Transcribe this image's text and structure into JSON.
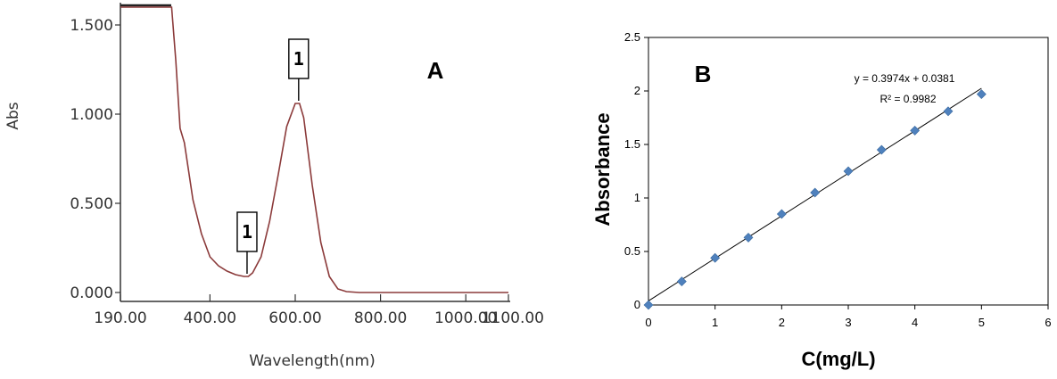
{
  "chart_data": [
    {
      "type": "line",
      "panel_label": "A",
      "xlabel": "Wavelength(nm)",
      "ylabel": "Abs",
      "xlim": [
        190,
        1100
      ],
      "ylim": [
        0,
        1.6
      ],
      "x_ticks": [
        "190.00",
        "400.00",
        "600.00",
        "800.00",
        "1000.00",
        "1100.00"
      ],
      "y_ticks": [
        "0.000",
        "0.500",
        "1.000",
        "1.500"
      ],
      "line_color": "#8b3a3a",
      "series": [
        {
          "x": [
            190,
            200,
            250,
            300,
            310,
            320,
            330,
            340,
            350,
            360,
            380,
            400,
            420,
            440,
            460,
            480,
            490,
            500,
            520,
            540,
            560,
            580,
            600,
            610,
            620,
            640,
            660,
            680,
            700,
            720,
            750,
            800,
            900,
            1000,
            1100
          ],
          "y": [
            1.6,
            1.6,
            1.6,
            1.6,
            1.6,
            1.3,
            0.92,
            0.84,
            0.68,
            0.52,
            0.33,
            0.2,
            0.15,
            0.12,
            0.1,
            0.09,
            0.09,
            0.11,
            0.2,
            0.4,
            0.66,
            0.93,
            1.06,
            1.06,
            0.98,
            0.6,
            0.28,
            0.09,
            0.02,
            0.005,
            0,
            0,
            0,
            0,
            0
          ]
        }
      ],
      "annotations": [
        {
          "text": "1",
          "x": 487,
          "y": 0.09
        },
        {
          "text": "1",
          "x": 608,
          "y": 1.06
        }
      ]
    },
    {
      "type": "scatter",
      "panel_label": "B",
      "xlabel": "C(mg/L)",
      "ylabel": "Absorbance",
      "xlim": [
        0,
        6
      ],
      "ylim": [
        0,
        2.5
      ],
      "x_ticks": [
        "0",
        "1",
        "2",
        "3",
        "4",
        "5",
        "6"
      ],
      "y_ticks": [
        "0",
        "0.5",
        "1",
        "1.5",
        "2",
        "2.5"
      ],
      "marker_color": "#4f81bd",
      "series": [
        {
          "x": [
            0,
            0.5,
            1,
            1.5,
            2,
            2.5,
            3,
            3.5,
            4,
            4.5,
            5
          ],
          "y": [
            0,
            0.22,
            0.44,
            0.63,
            0.85,
            1.05,
            1.25,
            1.45,
            1.63,
            1.81,
            1.97
          ]
        }
      ],
      "trendline": {
        "slope": 0.3974,
        "intercept": 0.0381,
        "x_range": [
          0,
          5
        ]
      },
      "equation": "y = 0.3974x + 0.0381",
      "r_squared": "R² = 0.9982"
    }
  ]
}
